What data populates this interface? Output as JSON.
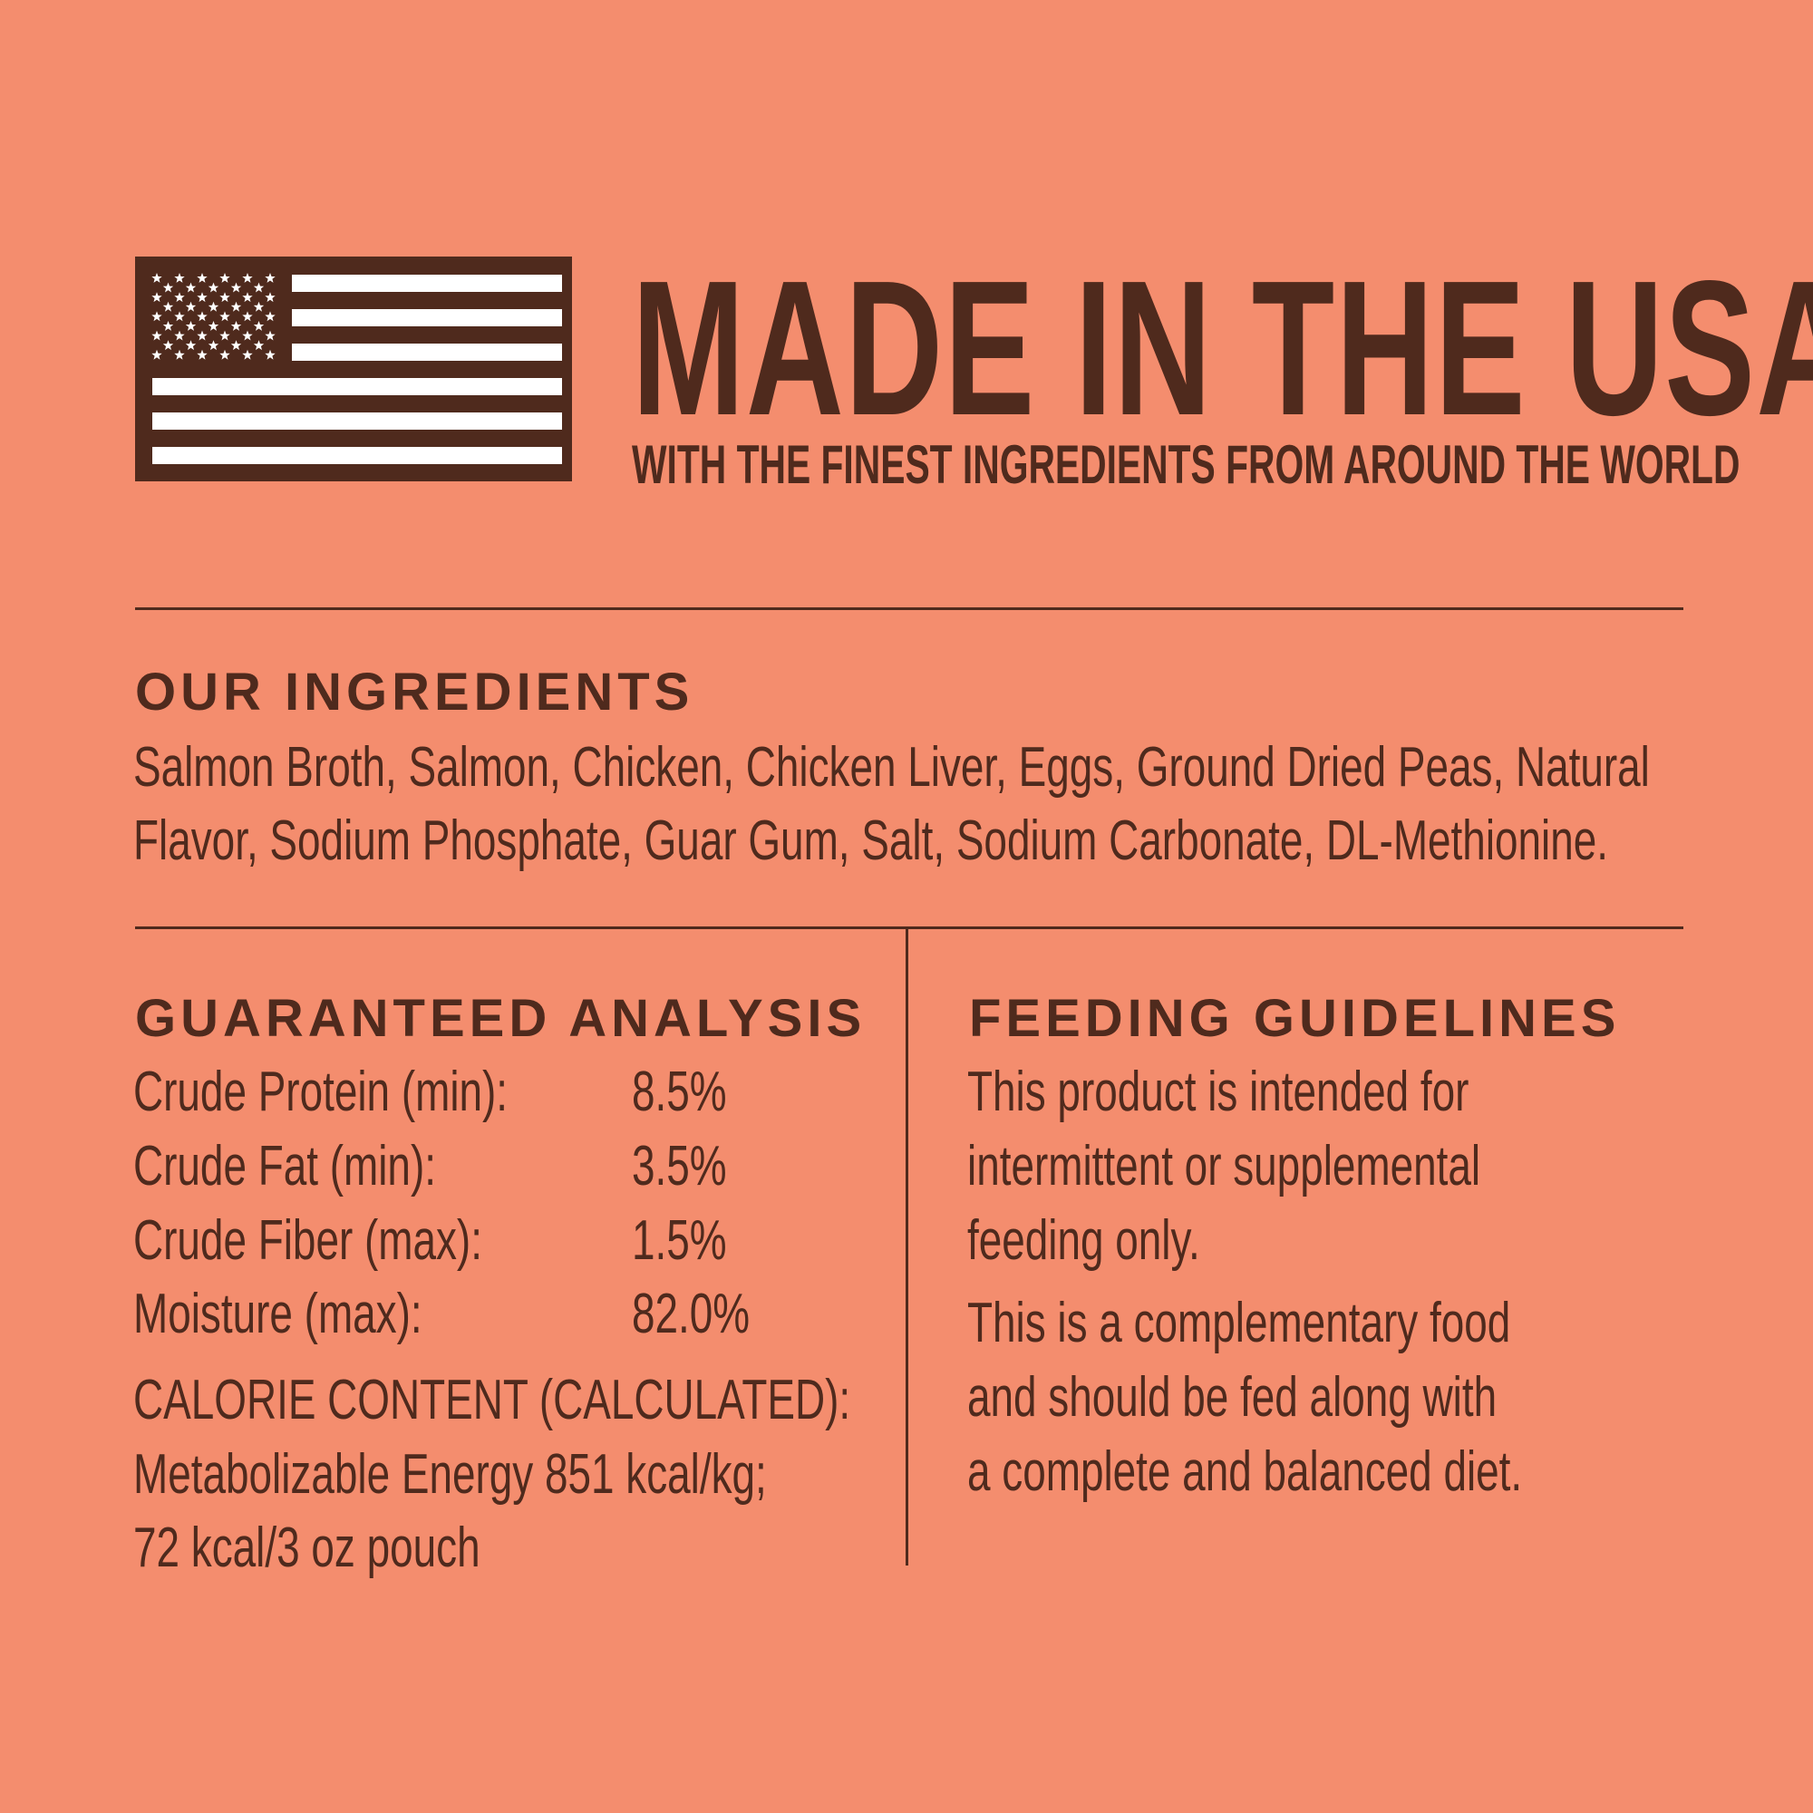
{
  "header": {
    "flag_icon": "us-flag-icon",
    "title": "MADE IN THE USA",
    "subtitle": "WITH THE FINEST INGREDIENTS FROM AROUND THE WORLD"
  },
  "ingredients": {
    "heading": "OUR INGREDIENTS",
    "lines": [
      "Salmon Broth, Salmon, Chicken, Chicken Liver, Eggs, Ground Dried Peas, Natural",
      "Flavor, Sodium Phosphate, Guar Gum, Salt, Sodium Carbonate, DL-Methionine."
    ]
  },
  "analysis": {
    "heading": "GUARANTEED ANALYSIS",
    "rows": [
      {
        "label": "Crude Protein (min):",
        "value": "8.5%"
      },
      {
        "label": "Crude Fat (min):",
        "value": "3.5%"
      },
      {
        "label": "Crude Fiber (max):",
        "value": "1.5%"
      },
      {
        "label": "Moisture (max):",
        "value": "82.0%"
      }
    ],
    "calorie_lines": [
      "CALORIE CONTENT (CALCULATED):",
      "Metabolizable Energy 851 kcal/kg;",
      "72 kcal/3 oz pouch"
    ]
  },
  "feeding": {
    "heading": "FEEDING GUIDELINES",
    "paragraph1": [
      "This product is intended for",
      "intermittent or supplemental",
      "feeding only."
    ],
    "paragraph2": [
      "This is a complementary food",
      "and should be fed along with",
      "a complete and balanced diet."
    ]
  },
  "colors": {
    "background": "#f48d6e",
    "text": "#4f2a1d",
    "flag_stripes": "#ffffff"
  }
}
